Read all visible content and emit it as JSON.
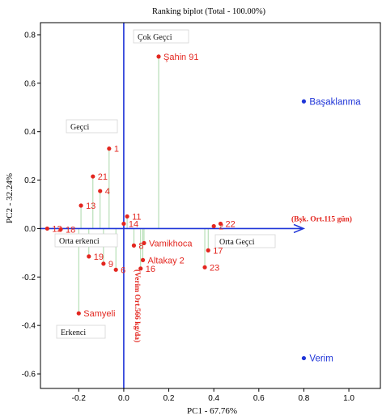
{
  "chart_data": {
    "type": "scatter",
    "title": "Ranking biplot (Total - 100.00%)",
    "xlabel": "PC1 - 67.76%",
    "ylabel": "PC2 - 32.24%",
    "xlim": [
      -0.37,
      1.14
    ],
    "ylim": [
      -0.66,
      0.85
    ],
    "xticks": [
      -0.2,
      0.0,
      0.2,
      0.4,
      0.6,
      0.8,
      1.0
    ],
    "xtick_labels": [
      "-0.2",
      "0.0",
      "0.2",
      "0.4",
      "0.6",
      "0.8",
      "1.0"
    ],
    "yticks": [
      0.8,
      0.6,
      0.4,
      0.2,
      0.0,
      -0.2,
      -0.4,
      -0.6
    ],
    "ytick_labels": [
      "0.8",
      "0.6",
      "0.4",
      "0.2",
      "0.0",
      "-0.2",
      "-0.4",
      "-0.6"
    ],
    "grid": false,
    "genotypes": [
      {
        "label": "Şahin 91",
        "x": 0.155,
        "y": 0.71
      },
      {
        "label": "1",
        "x": -0.065,
        "y": 0.33
      },
      {
        "label": "21",
        "x": -0.137,
        "y": 0.215
      },
      {
        "label": "4",
        "x": -0.105,
        "y": 0.155
      },
      {
        "label": "13",
        "x": -0.19,
        "y": 0.095
      },
      {
        "label": "11",
        "x": 0.015,
        "y": 0.05
      },
      {
        "label": "14",
        "x": 0.0,
        "y": 0.02
      },
      {
        "label": "12",
        "x": -0.34,
        "y": 0.0
      },
      {
        "label": "18",
        "x": -0.28,
        "y": -0.003
      },
      {
        "label": "2",
        "x": 0.4,
        "y": 0.01
      },
      {
        "label": "22",
        "x": 0.43,
        "y": 0.02
      },
      {
        "label": "Vamikhoca",
        "x": 0.09,
        "y": -0.06
      },
      {
        "label": "8",
        "x": 0.045,
        "y": -0.07
      },
      {
        "label": "17",
        "x": 0.375,
        "y": -0.09
      },
      {
        "label": "19",
        "x": -0.155,
        "y": -0.115
      },
      {
        "label": "9",
        "x": -0.09,
        "y": -0.145
      },
      {
        "label": "6",
        "x": -0.035,
        "y": -0.17
      },
      {
        "label": "Altakay 2",
        "x": 0.085,
        "y": -0.13
      },
      {
        "label": "16",
        "x": 0.075,
        "y": -0.165
      },
      {
        "label": "23",
        "x": 0.36,
        "y": -0.16
      },
      {
        "label": "Samyeli",
        "x": -0.2,
        "y": -0.35
      }
    ],
    "testers": [
      {
        "label": "Başaklanma",
        "x": 0.8,
        "y": 0.525
      },
      {
        "label": "Verim",
        "x": 0.8,
        "y": -0.535
      }
    ],
    "reference_lines": {
      "horizontal_label": "(Bşk. Ort.115 gün)",
      "vertical_label": "(Verim Ort.566 kg/da)"
    },
    "sector_labels": [
      "Çok Geçci",
      "Geçci",
      "Orta erkenci",
      "Orta Geçci",
      "Erkenci"
    ],
    "colors": {
      "genotype": "#e3261f",
      "tester": "#1f35d8",
      "axes": "#1f35d8",
      "projection": "#9fd49f",
      "frame": "#000000"
    }
  }
}
